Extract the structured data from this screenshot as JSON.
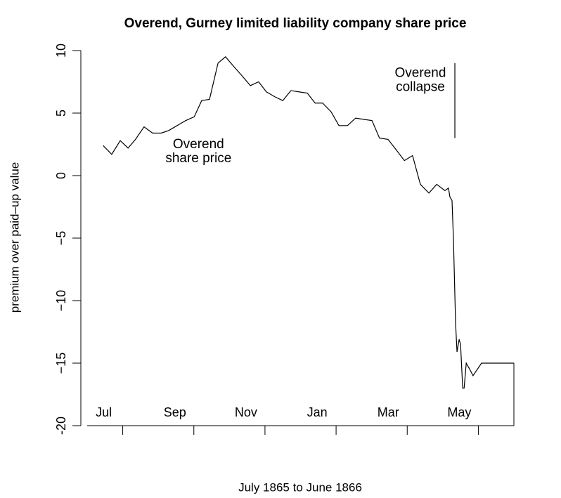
{
  "chart_data": {
    "type": "line",
    "title": "Overend, Gurney limited liability company share price",
    "x_label": "July 1865 to June 1866",
    "y_label": "premium over paid–up value",
    "series": [
      {
        "name": "Overend share price",
        "color": "#000000",
        "x": [
          0.45,
          0.69,
          0.93,
          1.15,
          1.36,
          1.6,
          1.84,
          2.08,
          2.29,
          2.53,
          2.77,
          3.01,
          3.22,
          3.44,
          3.68,
          3.89,
          4.13,
          4.35,
          4.59,
          4.82,
          5.04,
          5.28,
          5.5,
          5.73,
          5.95,
          6.19,
          6.41,
          6.62,
          6.86,
          7.08,
          7.32,
          7.55,
          7.77,
          8.01,
          8.22,
          8.46,
          8.68,
          8.92,
          9.15,
          9.37,
          9.61,
          9.83,
          10.06,
          10.16,
          10.2,
          10.26,
          10.3,
          10.36,
          10.4,
          10.46,
          10.5,
          10.56,
          10.6,
          10.66,
          10.76,
          10.85,
          11.09,
          12
        ],
        "values": [
          2.4,
          1.7,
          2.8,
          2.2,
          2.9,
          3.9,
          3.4,
          3.4,
          3.6,
          4.0,
          4.4,
          4.7,
          6.0,
          6.1,
          9.0,
          9.5,
          8.7,
          8.0,
          7.2,
          7.5,
          6.7,
          6.3,
          6.0,
          6.8,
          6.7,
          6.6,
          5.8,
          5.8,
          5.1,
          4.0,
          4.0,
          4.6,
          4.5,
          4.4,
          3.0,
          2.9,
          2.1,
          1.2,
          1.6,
          -0.7,
          -1.4,
          -0.7,
          -1.2,
          -1.0,
          -1.7,
          -2.0,
          -5.1,
          -11.8,
          -14.1,
          -13.1,
          -13.5,
          -17,
          -17,
          -15,
          -15.5,
          -16,
          -15,
          -15
        ]
      }
    ],
    "annotations": [
      {
        "lines": [
          "Overend",
          "share price"
        ],
        "x": 3.13,
        "y": 1.9
      },
      {
        "lines": [
          "Overend",
          "collapse"
        ],
        "x": 9.37,
        "y": 7.6
      }
    ],
    "collapse_marker": {
      "x": 10.34,
      "y": [
        3,
        9
      ]
    },
    "xlim": [
      0,
      12
    ],
    "xticks": [
      {
        "value": 1,
        "label": "Jul"
      },
      {
        "value": 3,
        "label": "Sep"
      },
      {
        "value": 5,
        "label": "Nov"
      },
      {
        "value": 7,
        "label": "Jan"
      },
      {
        "value": 9,
        "label": "Mar"
      },
      {
        "value": 11,
        "label": "May"
      }
    ],
    "ylim": [
      -20,
      10
    ],
    "yticks": [
      -20,
      {
        "value": -15,
        "label": "−15"
      },
      {
        "value": -10,
        "label": "−10"
      },
      {
        "value": -5,
        "label": "−5"
      },
      0,
      5,
      10
    ],
    "grid": false
  }
}
